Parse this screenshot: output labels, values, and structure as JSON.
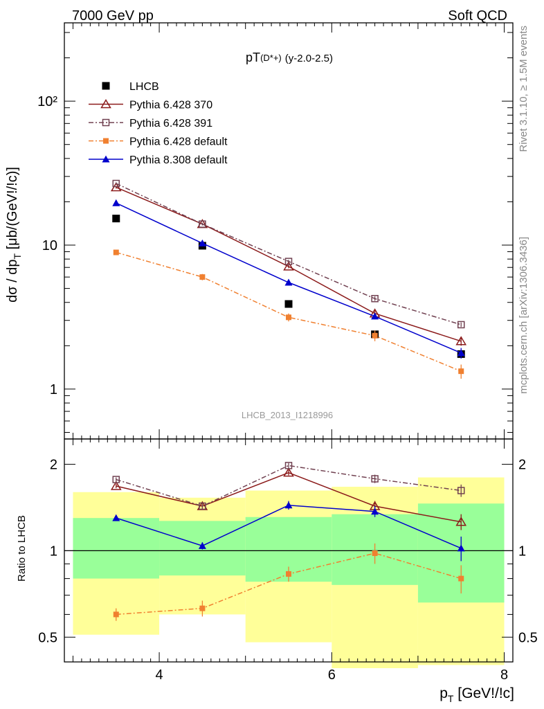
{
  "header": {
    "left": "7000 GeV pp",
    "right": "Soft QCD"
  },
  "side_labels": {
    "rivet": "Rivet 3.1.10, ≥ 1.5M events",
    "source": "mcplots.cern.ch [arXiv:1306.3436]"
  },
  "watermark": "LHCB_2013_I1218996",
  "colors": {
    "data": "#000000",
    "py370": "#8b1a1a",
    "py391": "#704050",
    "py6def": "#f08030",
    "py8": "#0000cc",
    "band_inner": "#99ff99",
    "band_outer": "#ffff99"
  },
  "chart_data": [
    {
      "type": "line",
      "title_main": "pT",
      "title_sub": "(D*+)",
      "title_rest": "(y-2.0-2.5)",
      "ylabel": "dσ / dp_T [μb/(GeV!/!c)]",
      "yscale": "log",
      "xlim": [
        2.9,
        8.1
      ],
      "ylim": [
        0.45,
        350
      ],
      "yticks": [
        {
          "v": 1,
          "label": "1"
        },
        {
          "v": 10,
          "label": "10"
        },
        {
          "v": 100,
          "label": "10²"
        }
      ],
      "legend_position": "top-left",
      "series": [
        {
          "name": "LHCB",
          "key": "data",
          "marker": "square-filled",
          "line": "none",
          "x": [
            3.5,
            4.5,
            5.5,
            6.5,
            7.5
          ],
          "y": [
            15.3,
            9.9,
            3.9,
            2.4,
            1.75
          ],
          "err": [
            0.3,
            0.3,
            0.1,
            0.1,
            0.08
          ]
        },
        {
          "name": "Pythia 6.428 370",
          "key": "py370",
          "marker": "triangle-open",
          "line": "solid",
          "x": [
            3.5,
            4.5,
            5.5,
            6.5,
            7.5
          ],
          "y": [
            25.2,
            14.0,
            7.1,
            3.35,
            2.15
          ],
          "err": [
            0.5,
            0.3,
            0.2,
            0.2,
            0.15
          ]
        },
        {
          "name": "Pythia 6.428 391",
          "key": "py391",
          "marker": "square-open",
          "line": "dashdot",
          "x": [
            3.5,
            4.5,
            5.5,
            6.5,
            7.5
          ],
          "y": [
            26.8,
            14.0,
            7.7,
            4.25,
            2.8
          ],
          "err": [
            0.5,
            0.3,
            0.2,
            0.15,
            0.1
          ]
        },
        {
          "name": "Pythia 6.428 default",
          "key": "py6def",
          "marker": "square-filled-small",
          "line": "dashdot",
          "x": [
            3.5,
            4.5,
            5.5,
            6.5,
            7.5
          ],
          "y": [
            8.9,
            6.0,
            3.15,
            2.35,
            1.33
          ],
          "err": [
            0.3,
            0.3,
            0.2,
            0.2,
            0.15
          ]
        },
        {
          "name": "Pythia 8.308 default",
          "key": "py8",
          "marker": "triangle-filled",
          "line": "solid",
          "x": [
            3.5,
            4.5,
            5.5,
            6.5,
            7.5
          ],
          "y": [
            19.6,
            10.3,
            5.5,
            3.2,
            1.78
          ],
          "err": [
            0.3,
            0.2,
            0.1,
            0.15,
            0.15
          ]
        }
      ]
    },
    {
      "type": "line",
      "ylabel": "Ratio to LHCB",
      "xlabel": "p_T [GeV!/!c]",
      "yscale": "log",
      "xlim": [
        2.9,
        8.1
      ],
      "ylim": [
        0.41,
        2.45
      ],
      "xticks": [
        4,
        6,
        8
      ],
      "yticks": [
        {
          "v": 0.5,
          "label": "0.5"
        },
        {
          "v": 1,
          "label": "1"
        },
        {
          "v": 2,
          "label": "2"
        }
      ],
      "bands": [
        {
          "x0": 3.0,
          "x1": 4.0,
          "outer": [
            0.51,
            1.6
          ],
          "inner": [
            0.8,
            1.3
          ]
        },
        {
          "x0": 4.0,
          "x1": 5.0,
          "outer": [
            0.6,
            1.53
          ],
          "inner": [
            0.82,
            1.27
          ]
        },
        {
          "x0": 5.0,
          "x1": 6.0,
          "outer": [
            0.48,
            1.62
          ],
          "inner": [
            0.78,
            1.31
          ]
        },
        {
          "x0": 6.0,
          "x1": 7.0,
          "outer": [
            0.39,
            1.67
          ],
          "inner": [
            0.76,
            1.34
          ]
        },
        {
          "x0": 7.0,
          "x1": 8.0,
          "outer": [
            0.4,
            1.8
          ],
          "inner": [
            0.66,
            1.46
          ]
        }
      ],
      "series": [
        {
          "key": "py370",
          "marker": "triangle-open",
          "line": "solid",
          "x": [
            3.5,
            4.5,
            5.5,
            6.5,
            7.5
          ],
          "y": [
            1.68,
            1.43,
            1.87,
            1.43,
            1.26
          ],
          "err": [
            0.03,
            0.03,
            0.04,
            0.06,
            0.08
          ]
        },
        {
          "key": "py391",
          "marker": "square-open",
          "line": "dashdot",
          "x": [
            3.5,
            4.5,
            5.5,
            6.5,
            7.5
          ],
          "y": [
            1.77,
            1.43,
            1.98,
            1.78,
            1.62
          ],
          "err": [
            0.03,
            0.03,
            0.04,
            0.06,
            0.08
          ]
        },
        {
          "key": "py6def",
          "marker": "square-filled-small",
          "line": "dashdot",
          "x": [
            3.5,
            4.5,
            5.5,
            6.5,
            7.5
          ],
          "y": [
            0.6,
            0.63,
            0.83,
            0.98,
            0.8
          ],
          "err": [
            0.03,
            0.04,
            0.05,
            0.08,
            0.09
          ]
        },
        {
          "key": "py8",
          "marker": "triangle-filled",
          "line": "solid",
          "x": [
            3.5,
            4.5,
            5.5,
            6.5,
            7.5
          ],
          "y": [
            1.3,
            1.04,
            1.44,
            1.37,
            1.02
          ],
          "err": [
            0.02,
            0.03,
            0.05,
            0.06,
            0.1
          ]
        }
      ]
    }
  ]
}
